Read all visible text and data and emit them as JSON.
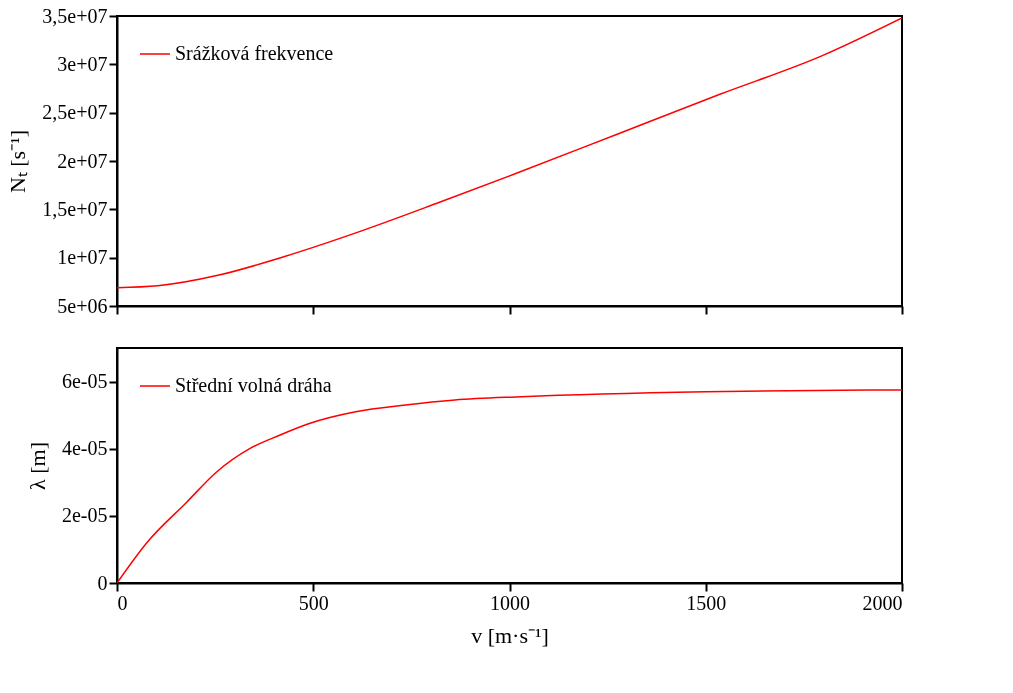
{
  "chart_data": [
    {
      "type": "line",
      "ylabel": "Nₜ [s⁻¹]",
      "xlim": [
        0,
        2000
      ],
      "xticks": [
        0,
        500,
        1000,
        1500,
        2000
      ],
      "ylim": [
        5000000,
        35000000
      ],
      "yticks": [
        {
          "value": 5000000,
          "label": "5e+06"
        },
        {
          "value": 10000000,
          "label": "1e+07"
        },
        {
          "value": 15000000,
          "label": "1,5e+07"
        },
        {
          "value": 20000000,
          "label": "2e+07"
        },
        {
          "value": 25000000,
          "label": "2,5e+07"
        },
        {
          "value": 30000000,
          "label": "3e+07"
        },
        {
          "value": 35000000,
          "label": "3,5e+07"
        }
      ],
      "tick_labels": "y",
      "legend": "top left",
      "grid": false,
      "series": [
        {
          "name": "Srážková frekvence",
          "color": "#ff0000",
          "line_style": "solid",
          "x": [
            0,
            104,
            260,
            417,
            625,
            820,
            1016,
            1276,
            1536,
            1797,
            2000
          ],
          "values": [
            6900000,
            7100000,
            8200000,
            10000000,
            12800000,
            15700000,
            18700000,
            22800000,
            26900000,
            30900000,
            34800000
          ]
        }
      ]
    },
    {
      "type": "line",
      "xlabel": "v [m·s⁻¹]",
      "ylabel": "λ [m]",
      "xlim": [
        0,
        2000
      ],
      "xticks": [
        0,
        500,
        1000,
        1500,
        2000
      ],
      "ylim": [
        0,
        7e-05
      ],
      "yticks": [
        {
          "value": 0,
          "label": "0"
        },
        {
          "value": 2e-05,
          "label": "2e-05"
        },
        {
          "value": 4e-05,
          "label": "4e-05"
        },
        {
          "value": 6e-05,
          "label": "6e-05"
        }
      ],
      "legend": "top left",
      "grid": false,
      "series": [
        {
          "name": "Střední volná dráha",
          "color": "#ff0000",
          "line_style": "solid",
          "x": [
            0,
            76,
            177,
            253,
            338,
            414,
            490,
            608,
            735,
            861,
            1030,
            1500,
            2000
          ],
          "values": [
            0,
            1.2e-05,
            2.4e-05,
            3.3e-05,
            4e-05,
            4.4e-05,
            4.75e-05,
            5.1e-05,
            5.3e-05,
            5.45e-05,
            5.55e-05,
            5.7e-05,
            5.75e-05
          ]
        }
      ]
    }
  ]
}
